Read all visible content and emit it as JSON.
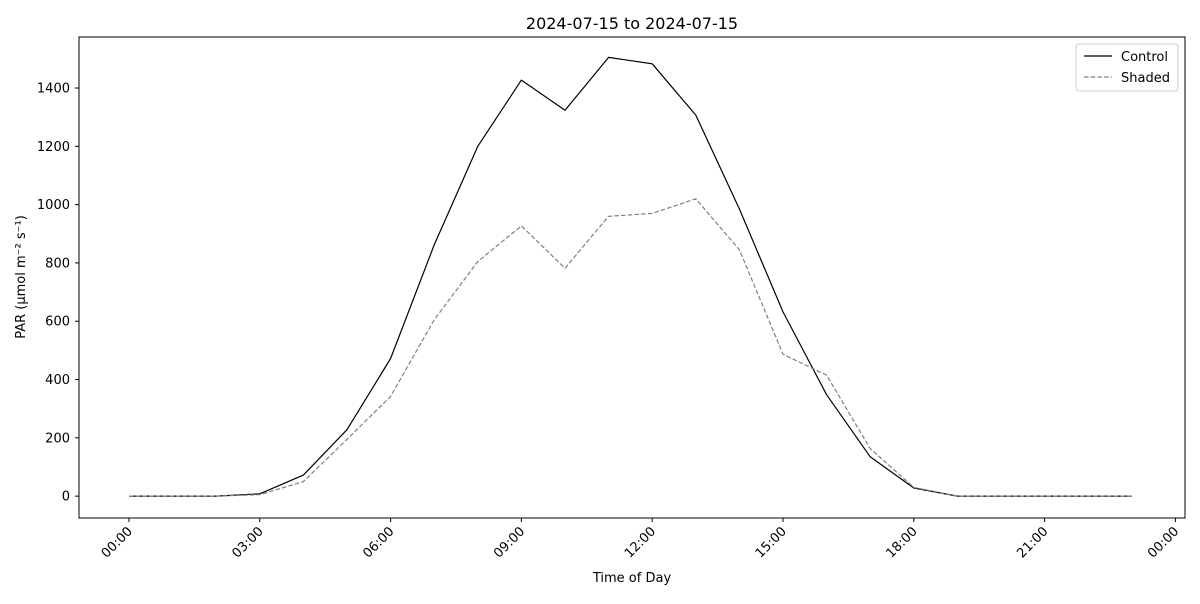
{
  "chart_data": {
    "type": "line",
    "title": "2024-07-15 to 2024-07-15",
    "xlabel": "Time of Day",
    "ylabel": "PAR (µmol m⁻² s⁻¹)",
    "x": [
      "00:00",
      "01:00",
      "02:00",
      "03:00",
      "04:00",
      "05:00",
      "06:00",
      "07:00",
      "08:00",
      "09:00",
      "10:00",
      "11:00",
      "12:00",
      "13:00",
      "14:00",
      "15:00",
      "16:00",
      "17:00",
      "18:00",
      "19:00",
      "20:00",
      "21:00",
      "22:00",
      "23:00"
    ],
    "xlim": [
      "2024-07-15 00:00",
      "2024-07-16 00:00"
    ],
    "xticks": [
      "00:00",
      "03:00",
      "06:00",
      "09:00",
      "12:00",
      "15:00",
      "18:00",
      "21:00",
      "00:00"
    ],
    "ylim": [
      -75,
      1575
    ],
    "yticks": [
      0,
      200,
      400,
      600,
      800,
      1000,
      1200,
      1400
    ],
    "grid": false,
    "legend_position": "top-right",
    "series": [
      {
        "name": "Control",
        "color": "#000000",
        "dash": "solid",
        "values": [
          0,
          0,
          0,
          8,
          72,
          228,
          472,
          862,
          1200,
          1427,
          1324,
          1505,
          1483,
          1307,
          985,
          632,
          348,
          135,
          28,
          0,
          0,
          0,
          0,
          0
        ]
      },
      {
        "name": "Shaded",
        "color": "#808080",
        "dash": "dashed",
        "values": [
          0,
          0,
          0,
          5,
          50,
          195,
          342,
          605,
          805,
          927,
          782,
          960,
          970,
          1020,
          845,
          487,
          415,
          163,
          30,
          0,
          0,
          0,
          0,
          0
        ]
      }
    ]
  }
}
